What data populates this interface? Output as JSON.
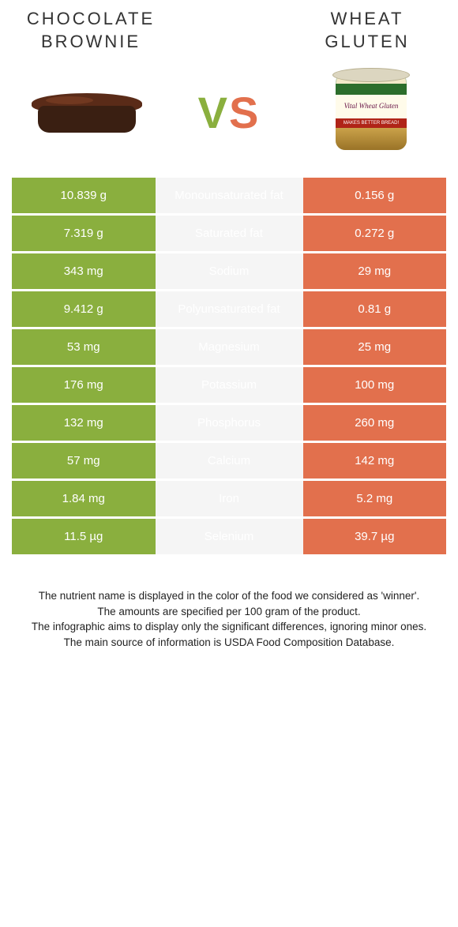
{
  "header": {
    "left_title": "CHOCOLATE BROWNIE",
    "right_title": "WHEAT GLUTEN",
    "vs_v": "V",
    "vs_s": "S",
    "can_label": "Vital Wheat Gluten",
    "can_band": "MAKES BETTER BREAD!"
  },
  "colors": {
    "left": "#8aaf3e",
    "right": "#e2704d",
    "mid_bg": "#f5f5f5"
  },
  "rows": [
    {
      "left": "10.839 g",
      "label": "Monounsaturated fat",
      "right": "0.156 g",
      "winner": "right"
    },
    {
      "left": "7.319 g",
      "label": "Saturated fat",
      "right": "0.272 g",
      "winner": "right"
    },
    {
      "left": "343 mg",
      "label": "Sodium",
      "right": "29 mg",
      "winner": "right"
    },
    {
      "left": "9.412 g",
      "label": "Polyunsaturated fat",
      "right": "0.81 g",
      "winner": "left"
    },
    {
      "left": "53 mg",
      "label": "Magnesium",
      "right": "25 mg",
      "winner": "left"
    },
    {
      "left": "176 mg",
      "label": "Potassium",
      "right": "100 mg",
      "winner": "left"
    },
    {
      "left": "132 mg",
      "label": "Phosphorus",
      "right": "260 mg",
      "winner": "right"
    },
    {
      "left": "57 mg",
      "label": "Calcium",
      "right": "142 mg",
      "winner": "right"
    },
    {
      "left": "1.84 mg",
      "label": "Iron",
      "right": "5.2 mg",
      "winner": "right"
    },
    {
      "left": "11.5 µg",
      "label": "Selenium",
      "right": "39.7 µg",
      "winner": "right"
    }
  ],
  "footer": {
    "l1": "The nutrient name is displayed in the color of the food we considered as 'winner'.",
    "l2": "The amounts are specified per 100 gram of the product.",
    "l3": "The infographic aims to display only the significant differences, ignoring minor ones.",
    "l4": "The main source of information is USDA Food Composition Database."
  }
}
